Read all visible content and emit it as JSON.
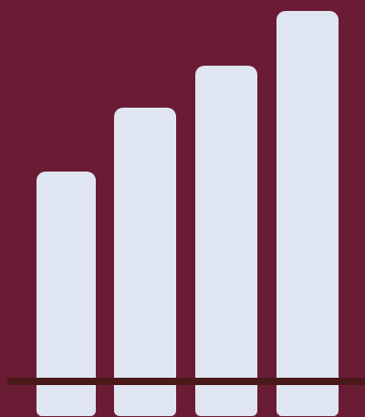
{
  "colors": {
    "background": "#6b1c35",
    "bar_fill": "#dfe6f1",
    "baseline": "#4a1a1b"
  },
  "graphic": {
    "kind": "ascending-bars-icon",
    "bar_count": 4
  }
}
